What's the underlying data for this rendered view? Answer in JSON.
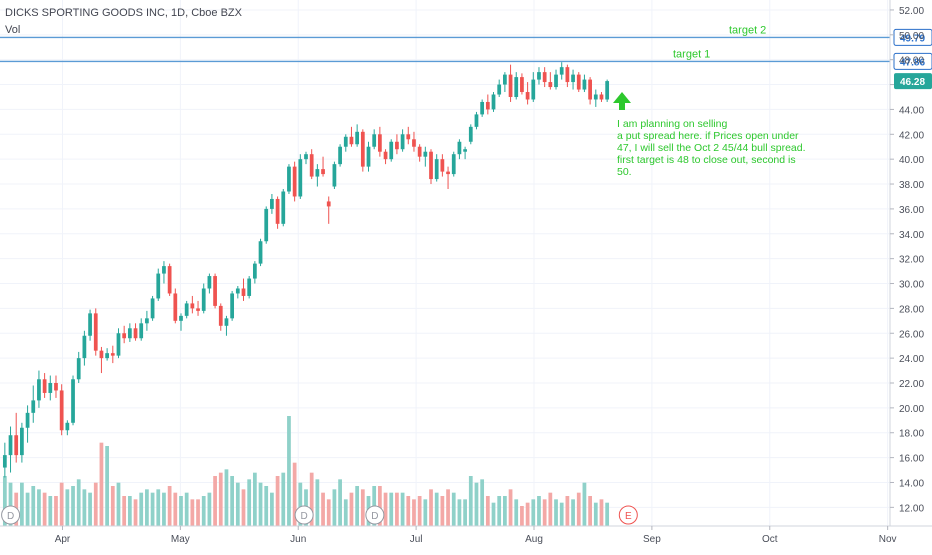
{
  "header": {
    "title": "DICKS SPORTING GOODS INC, 1D, Cboe BZX",
    "vol_label": "Vol"
  },
  "colors": {
    "up": "#26a69a",
    "down": "#ef5350",
    "up_vol": "#8fd1c9",
    "down_vol": "#f3a8a6",
    "target_line": "#5b9bd5",
    "annotation": "#2dc82d",
    "grid": "#f0f3fa",
    "axis_text": "#4a4e59",
    "price_tag": "#26a69a",
    "line_tag": "#2a6fc9"
  },
  "annotation": {
    "text": "I am planning on selling\na put spread here.  if Prices open under 47, I will sell the Oct 2 45/44 bull spread.  first target is 48 to close out, second is 50.",
    "arrow": "up-arrow-icon"
  },
  "chart_data": {
    "type": "candlestick",
    "title": "DICKS SPORTING GOODS INC, 1D, Cboe BZX",
    "ylabel": "",
    "ylim": [
      10.5,
      52.8
    ],
    "y_ticks": [
      12,
      14,
      16,
      18,
      20,
      22,
      24,
      26,
      28,
      30,
      32,
      34,
      36,
      38,
      40,
      42,
      44,
      46,
      48,
      50,
      52
    ],
    "y_tick_labels": [
      "12.00",
      "14.00",
      "16.00",
      "18.00",
      "20.00",
      "22.00",
      "24.00",
      "26.00",
      "28.00",
      "30.00",
      "32.00",
      "34.00",
      "36.00",
      "38.00",
      "40.00",
      "42.00",
      "44.00",
      "46.00",
      "48.00",
      "50.00",
      "52.00"
    ],
    "x_ticks": [
      {
        "label": "Apr",
        "x": 0.5
      },
      {
        "label": "May",
        "x": 1.5
      },
      {
        "label": "Jun",
        "x": 2.5
      },
      {
        "label": "Jul",
        "x": 3.5
      },
      {
        "label": "Aug",
        "x": 4.5
      },
      {
        "label": "Sep",
        "x": 5.5
      },
      {
        "label": "Oct",
        "x": 6.5
      },
      {
        "label": "Nov",
        "x": 7.5
      }
    ],
    "x_range": [
      -0.03,
      7.52
    ],
    "grid": true,
    "horizontal_lines": [
      {
        "label": "target 2",
        "value": 49.79,
        "tag": "49.79"
      },
      {
        "label": "target 1",
        "value": 47.86,
        "tag": "47.86"
      }
    ],
    "last_price": {
      "value": 46.28,
      "tag": "46.28"
    },
    "volume_max": 3.3,
    "candles": [
      {
        "o": 15.2,
        "h": 17.2,
        "l": 14.4,
        "c": 16.2,
        "v": 1.5
      },
      {
        "o": 16.2,
        "h": 18.5,
        "l": 14.8,
        "c": 17.8,
        "v": 1.3
      },
      {
        "o": 17.8,
        "h": 19.6,
        "l": 15.6,
        "c": 16.2,
        "v": 1.0
      },
      {
        "o": 16.2,
        "h": 18.8,
        "l": 15.6,
        "c": 18.4,
        "v": 1.3
      },
      {
        "o": 18.4,
        "h": 20.2,
        "l": 17.2,
        "c": 19.6,
        "v": 1.0
      },
      {
        "o": 19.6,
        "h": 21.8,
        "l": 18.8,
        "c": 20.6,
        "v": 1.2
      },
      {
        "o": 20.6,
        "h": 23.0,
        "l": 20.0,
        "c": 22.3,
        "v": 1.1
      },
      {
        "o": 22.3,
        "h": 22.8,
        "l": 20.8,
        "c": 21.2,
        "v": 1.0
      },
      {
        "o": 21.2,
        "h": 22.6,
        "l": 20.6,
        "c": 22.0,
        "v": 0.9
      },
      {
        "o": 22.0,
        "h": 22.6,
        "l": 20.8,
        "c": 21.4,
        "v": 0.9
      },
      {
        "o": 21.4,
        "h": 21.9,
        "l": 17.8,
        "c": 18.2,
        "v": 1.3
      },
      {
        "o": 18.2,
        "h": 19.0,
        "l": 17.8,
        "c": 18.8,
        "v": 1.1
      },
      {
        "o": 18.8,
        "h": 22.6,
        "l": 18.6,
        "c": 22.3,
        "v": 1.2
      },
      {
        "o": 22.3,
        "h": 24.5,
        "l": 22.0,
        "c": 24.0,
        "v": 1.4
      },
      {
        "o": 24.0,
        "h": 26.2,
        "l": 23.4,
        "c": 25.8,
        "v": 1.1
      },
      {
        "o": 25.8,
        "h": 27.9,
        "l": 25.4,
        "c": 27.6,
        "v": 1.0
      },
      {
        "o": 27.6,
        "h": 28.0,
        "l": 24.2,
        "c": 24.6,
        "v": 1.3
      },
      {
        "o": 24.6,
        "h": 24.9,
        "l": 22.8,
        "c": 24.0,
        "v": 2.5
      },
      {
        "o": 24.0,
        "h": 24.8,
        "l": 23.8,
        "c": 24.4,
        "v": 2.4
      },
      {
        "o": 24.4,
        "h": 25.0,
        "l": 23.6,
        "c": 24.2,
        "v": 1.2
      },
      {
        "o": 24.2,
        "h": 26.4,
        "l": 24.0,
        "c": 26.0,
        "v": 1.3
      },
      {
        "o": 26.0,
        "h": 26.6,
        "l": 25.2,
        "c": 25.6,
        "v": 0.9
      },
      {
        "o": 25.6,
        "h": 26.8,
        "l": 25.3,
        "c": 26.4,
        "v": 0.9
      },
      {
        "o": 26.4,
        "h": 26.8,
        "l": 25.4,
        "c": 25.6,
        "v": 0.8
      },
      {
        "o": 25.6,
        "h": 27.2,
        "l": 25.4,
        "c": 26.8,
        "v": 1.0
      },
      {
        "o": 26.8,
        "h": 27.8,
        "l": 26.2,
        "c": 27.2,
        "v": 1.1
      },
      {
        "o": 27.2,
        "h": 29.0,
        "l": 27.0,
        "c": 28.8,
        "v": 1.0
      },
      {
        "o": 28.8,
        "h": 31.2,
        "l": 28.6,
        "c": 30.8,
        "v": 1.1
      },
      {
        "o": 30.8,
        "h": 31.8,
        "l": 30.0,
        "c": 31.4,
        "v": 1.0
      },
      {
        "o": 31.4,
        "h": 31.6,
        "l": 29.0,
        "c": 29.2,
        "v": 1.2
      },
      {
        "o": 29.2,
        "h": 29.6,
        "l": 26.8,
        "c": 27.0,
        "v": 1.0
      },
      {
        "o": 27.0,
        "h": 27.6,
        "l": 26.2,
        "c": 27.4,
        "v": 0.9
      },
      {
        "o": 27.4,
        "h": 28.6,
        "l": 27.2,
        "c": 28.4,
        "v": 1.0
      },
      {
        "o": 28.4,
        "h": 29.0,
        "l": 27.6,
        "c": 28.0,
        "v": 0.8
      },
      {
        "o": 28.0,
        "h": 28.6,
        "l": 27.4,
        "c": 27.8,
        "v": 0.8
      },
      {
        "o": 27.8,
        "h": 30.0,
        "l": 27.6,
        "c": 29.6,
        "v": 0.9
      },
      {
        "o": 29.6,
        "h": 30.8,
        "l": 29.2,
        "c": 30.6,
        "v": 1.0
      },
      {
        "o": 30.6,
        "h": 30.8,
        "l": 28.0,
        "c": 28.2,
        "v": 1.5
      },
      {
        "o": 28.2,
        "h": 28.4,
        "l": 26.2,
        "c": 26.6,
        "v": 1.6
      },
      {
        "o": 26.6,
        "h": 27.4,
        "l": 25.8,
        "c": 27.2,
        "v": 1.7
      },
      {
        "o": 27.2,
        "h": 29.4,
        "l": 27.0,
        "c": 29.2,
        "v": 1.5
      },
      {
        "o": 29.2,
        "h": 29.8,
        "l": 28.8,
        "c": 29.6,
        "v": 1.3
      },
      {
        "o": 29.6,
        "h": 30.4,
        "l": 28.6,
        "c": 29.0,
        "v": 1.1
      },
      {
        "o": 29.0,
        "h": 30.6,
        "l": 28.8,
        "c": 30.4,
        "v": 1.4
      },
      {
        "o": 30.4,
        "h": 31.8,
        "l": 30.0,
        "c": 31.6,
        "v": 1.6
      },
      {
        "o": 31.6,
        "h": 33.6,
        "l": 31.4,
        "c": 33.4,
        "v": 1.3
      },
      {
        "o": 33.4,
        "h": 36.2,
        "l": 33.2,
        "c": 36.0,
        "v": 1.2
      },
      {
        "o": 36.0,
        "h": 37.2,
        "l": 35.6,
        "c": 36.8,
        "v": 1.0
      },
      {
        "o": 36.8,
        "h": 37.0,
        "l": 34.4,
        "c": 34.8,
        "v": 1.5
      },
      {
        "o": 34.8,
        "h": 37.6,
        "l": 34.6,
        "c": 37.4,
        "v": 1.6
      },
      {
        "o": 37.4,
        "h": 39.6,
        "l": 37.2,
        "c": 39.4,
        "v": 3.3
      },
      {
        "o": 39.4,
        "h": 39.8,
        "l": 36.6,
        "c": 37.0,
        "v": 1.9
      },
      {
        "o": 37.0,
        "h": 40.4,
        "l": 36.8,
        "c": 40.0,
        "v": 1.3
      },
      {
        "o": 40.0,
        "h": 40.6,
        "l": 39.6,
        "c": 40.4,
        "v": 1.1
      },
      {
        "o": 40.4,
        "h": 40.8,
        "l": 38.4,
        "c": 38.6,
        "v": 1.6
      },
      {
        "o": 38.6,
        "h": 39.6,
        "l": 37.8,
        "c": 39.2,
        "v": 1.4
      },
      {
        "o": 39.2,
        "h": 40.2,
        "l": 38.6,
        "c": 38.8,
        "v": 1.0
      },
      {
        "o": 36.6,
        "h": 37.0,
        "l": 34.8,
        "c": 36.2,
        "v": 0.8
      },
      {
        "o": 37.8,
        "h": 39.8,
        "l": 37.6,
        "c": 39.6,
        "v": 1.1
      },
      {
        "o": 39.6,
        "h": 41.2,
        "l": 39.4,
        "c": 41.0,
        "v": 1.4
      },
      {
        "o": 41.0,
        "h": 42.0,
        "l": 40.6,
        "c": 41.8,
        "v": 0.8
      },
      {
        "o": 41.8,
        "h": 42.6,
        "l": 41.0,
        "c": 41.2,
        "v": 1.0
      },
      {
        "o": 41.2,
        "h": 42.8,
        "l": 41.0,
        "c": 42.2,
        "v": 1.2
      },
      {
        "o": 42.2,
        "h": 42.4,
        "l": 39.0,
        "c": 39.4,
        "v": 1.1
      },
      {
        "o": 39.4,
        "h": 41.4,
        "l": 39.0,
        "c": 41.0,
        "v": 0.9
      },
      {
        "o": 41.0,
        "h": 42.4,
        "l": 40.8,
        "c": 42.0,
        "v": 1.2
      },
      {
        "o": 42.0,
        "h": 42.6,
        "l": 40.2,
        "c": 40.6,
        "v": 1.2
      },
      {
        "o": 40.6,
        "h": 40.8,
        "l": 39.6,
        "c": 40.0,
        "v": 1.0
      },
      {
        "o": 40.0,
        "h": 41.6,
        "l": 39.8,
        "c": 41.4,
        "v": 1.0
      },
      {
        "o": 41.4,
        "h": 42.0,
        "l": 40.4,
        "c": 40.8,
        "v": 1.0
      },
      {
        "o": 40.8,
        "h": 42.4,
        "l": 40.6,
        "c": 42.0,
        "v": 1.0
      },
      {
        "o": 42.0,
        "h": 42.6,
        "l": 41.2,
        "c": 41.6,
        "v": 0.9
      },
      {
        "o": 41.6,
        "h": 42.2,
        "l": 40.6,
        "c": 41.0,
        "v": 0.8
      },
      {
        "o": 41.0,
        "h": 41.2,
        "l": 39.8,
        "c": 40.2,
        "v": 0.9
      },
      {
        "o": 40.2,
        "h": 41.0,
        "l": 39.4,
        "c": 40.6,
        "v": 0.8
      },
      {
        "o": 40.6,
        "h": 40.8,
        "l": 38.0,
        "c": 38.4,
        "v": 1.1
      },
      {
        "o": 38.4,
        "h": 40.4,
        "l": 38.2,
        "c": 40.0,
        "v": 1.0
      },
      {
        "o": 40.0,
        "h": 40.4,
        "l": 38.6,
        "c": 39.0,
        "v": 0.9
      },
      {
        "o": 39.0,
        "h": 39.4,
        "l": 37.6,
        "c": 38.8,
        "v": 1.1
      },
      {
        "o": 38.8,
        "h": 40.6,
        "l": 38.6,
        "c": 40.4,
        "v": 1.0
      },
      {
        "o": 40.4,
        "h": 41.6,
        "l": 40.0,
        "c": 41.4,
        "v": 0.8
      },
      {
        "o": 40.6,
        "h": 41.0,
        "l": 40.0,
        "c": 40.8,
        "v": 0.8
      },
      {
        "o": 41.4,
        "h": 42.8,
        "l": 41.2,
        "c": 42.6,
        "v": 1.5
      },
      {
        "o": 42.6,
        "h": 43.8,
        "l": 42.4,
        "c": 43.6,
        "v": 1.3
      },
      {
        "o": 43.6,
        "h": 44.8,
        "l": 43.4,
        "c": 44.6,
        "v": 1.4
      },
      {
        "o": 44.6,
        "h": 45.2,
        "l": 43.6,
        "c": 44.0,
        "v": 0.9
      },
      {
        "o": 44.0,
        "h": 45.4,
        "l": 43.8,
        "c": 45.2,
        "v": 0.7
      },
      {
        "o": 45.2,
        "h": 46.4,
        "l": 45.0,
        "c": 46.0,
        "v": 0.9
      },
      {
        "o": 46.0,
        "h": 47.0,
        "l": 45.4,
        "c": 46.8,
        "v": 0.9
      },
      {
        "o": 46.8,
        "h": 47.6,
        "l": 44.6,
        "c": 45.0,
        "v": 1.1
      },
      {
        "o": 45.0,
        "h": 47.0,
        "l": 44.8,
        "c": 46.6,
        "v": 0.8
      },
      {
        "o": 46.6,
        "h": 46.9,
        "l": 45.2,
        "c": 45.4,
        "v": 0.6
      },
      {
        "o": 45.4,
        "h": 46.2,
        "l": 44.4,
        "c": 44.8,
        "v": 0.7
      },
      {
        "o": 44.8,
        "h": 47.0,
        "l": 44.6,
        "c": 46.4,
        "v": 0.8
      },
      {
        "o": 46.4,
        "h": 47.4,
        "l": 46.0,
        "c": 47.0,
        "v": 0.9
      },
      {
        "o": 47.0,
        "h": 47.4,
        "l": 45.8,
        "c": 46.2,
        "v": 0.8
      },
      {
        "o": 46.2,
        "h": 47.0,
        "l": 45.6,
        "c": 45.8,
        "v": 1.0
      },
      {
        "o": 45.8,
        "h": 47.2,
        "l": 45.6,
        "c": 46.8,
        "v": 0.8
      },
      {
        "o": 46.8,
        "h": 47.8,
        "l": 46.4,
        "c": 47.4,
        "v": 0.7
      },
      {
        "o": 47.4,
        "h": 47.6,
        "l": 45.8,
        "c": 46.2,
        "v": 0.9
      },
      {
        "o": 46.2,
        "h": 47.2,
        "l": 45.6,
        "c": 46.8,
        "v": 0.8
      },
      {
        "o": 46.8,
        "h": 47.0,
        "l": 45.4,
        "c": 45.6,
        "v": 1.0
      },
      {
        "o": 45.6,
        "h": 46.8,
        "l": 45.4,
        "c": 46.4,
        "v": 1.3
      },
      {
        "o": 46.4,
        "h": 46.6,
        "l": 44.4,
        "c": 44.8,
        "v": 0.9
      },
      {
        "o": 44.8,
        "h": 45.6,
        "l": 44.2,
        "c": 45.2,
        "v": 0.7
      },
      {
        "o": 45.2,
        "h": 45.4,
        "l": 44.6,
        "c": 44.8,
        "v": 0.8
      },
      {
        "o": 44.8,
        "h": 46.4,
        "l": 44.6,
        "c": 46.28,
        "v": 0.7
      }
    ]
  },
  "event_markers": [
    {
      "label": "D",
      "kind": "dividend",
      "x": 0.06
    },
    {
      "label": "D",
      "kind": "dividend",
      "x": 2.55
    },
    {
      "label": "D",
      "kind": "dividend",
      "x": 3.15
    },
    {
      "label": "E",
      "kind": "earnings",
      "x": 5.3
    }
  ]
}
